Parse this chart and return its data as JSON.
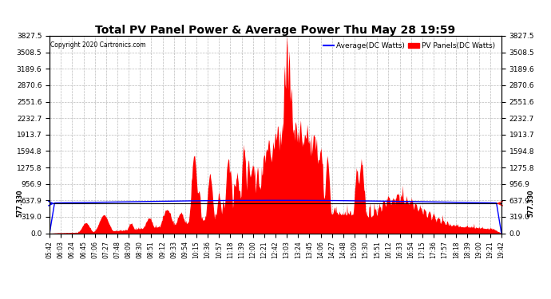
{
  "title": "Total PV Panel Power & Average Power Thu May 28 19:59",
  "copyright": "Copyright 2020 Cartronics.com",
  "legend_avg": "Average(DC Watts)",
  "legend_pv": "PV Panels(DC Watts)",
  "ymin": 0.0,
  "ymax": 3827.5,
  "yticks": [
    0.0,
    319.0,
    637.9,
    956.9,
    1275.8,
    1594.8,
    1913.7,
    2232.7,
    2551.6,
    2870.6,
    3189.6,
    3508.5,
    3827.5
  ],
  "hline_value": 577.33,
  "hline_label": "577.330",
  "bg_color": "#ffffff",
  "grid_color": "#bbbbbb",
  "pv_color": "#ff0000",
  "avg_color": "#0000ff",
  "title_color": "#000000",
  "copyright_color": "#000000",
  "xtick_labels": [
    "05:42",
    "06:03",
    "06:24",
    "06:45",
    "07:06",
    "07:27",
    "07:48",
    "08:09",
    "08:30",
    "08:51",
    "09:12",
    "09:33",
    "09:54",
    "10:15",
    "10:36",
    "10:57",
    "11:18",
    "11:39",
    "12:00",
    "12:21",
    "12:42",
    "13:03",
    "13:24",
    "13:45",
    "14:06",
    "14:27",
    "14:48",
    "15:09",
    "15:30",
    "15:51",
    "16:12",
    "16:33",
    "16:54",
    "17:15",
    "17:36",
    "17:57",
    "18:18",
    "18:39",
    "19:00",
    "19:21",
    "19:42"
  ]
}
